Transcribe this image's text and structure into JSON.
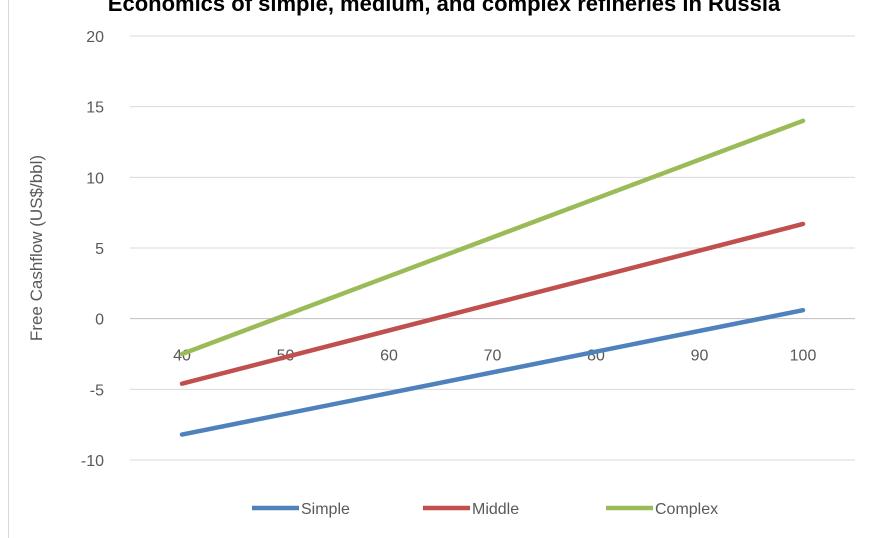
{
  "chart_data": {
    "type": "line",
    "title": "Economics of simple, medium, and complex refineries in Russia",
    "ylabel": "Free Cashflow (US$/bbl)",
    "xlabel": "",
    "x": [
      40,
      100
    ],
    "x_ticks": [
      40,
      50,
      60,
      70,
      80,
      90,
      100
    ],
    "y_ticks": [
      -10,
      -5,
      0,
      5,
      10,
      15,
      20
    ],
    "ylim": [
      -10,
      20
    ],
    "xlim": [
      40,
      100
    ],
    "grid": true,
    "legend": "bottom",
    "series": [
      {
        "name": "Simple",
        "color": "#4f81bd",
        "values": [
          -8.2,
          0.6
        ]
      },
      {
        "name": "Middle",
        "color": "#c0504d",
        "values": [
          -4.6,
          6.7
        ]
      },
      {
        "name": "Complex",
        "color": "#9bbb59",
        "values": [
          -2.5,
          14.0
        ]
      }
    ]
  }
}
